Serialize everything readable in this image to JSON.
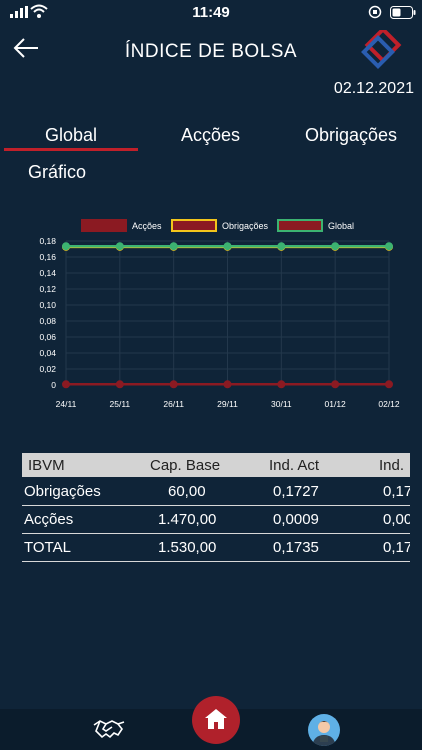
{
  "status": {
    "time": "11:49"
  },
  "header": {
    "title": "ÍNDICE DE BOLSA",
    "date": "02.12.2021"
  },
  "tabs": [
    {
      "label": "Global",
      "active": true
    },
    {
      "label": "Acções",
      "active": false
    },
    {
      "label": "Obrigações",
      "active": false
    }
  ],
  "section": {
    "title": "Gráfico"
  },
  "chart_data": {
    "type": "line",
    "x": [
      "24/11",
      "25/11",
      "26/11",
      "29/11",
      "30/11",
      "01/12",
      "02/12"
    ],
    "ylim": [
      0,
      0.18
    ],
    "yticks": [
      "0,18",
      "0,16",
      "0,14",
      "0,12",
      "0,10",
      "0,08",
      "0,06",
      "0,04",
      "0,02",
      "0"
    ],
    "legend_position": "top",
    "grid": true,
    "series": [
      {
        "name": "Acções",
        "color": "#8b1a22",
        "values": [
          0.0009,
          0.0009,
          0.0009,
          0.0009,
          0.0009,
          0.0009,
          0.0009
        ]
      },
      {
        "name": "Obrigações",
        "color": "#f2c51b",
        "values": [
          0.1727,
          0.1727,
          0.1727,
          0.1727,
          0.1727,
          0.1727,
          0.1727
        ]
      },
      {
        "name": "Global",
        "color": "#3cb371",
        "values": [
          0.1735,
          0.1735,
          0.1735,
          0.1735,
          0.1735,
          0.1735,
          0.1735
        ]
      }
    ]
  },
  "table": {
    "headers": [
      "IBVM",
      "Cap. Base",
      "Ind. Act",
      "Ind."
    ],
    "rows": [
      [
        "Obrigações",
        "60,00",
        "0,1727",
        "0,17"
      ],
      [
        "Acções",
        "1.470,00",
        "0,0009",
        "0,00"
      ],
      [
        "TOTAL",
        "1.530,00",
        "0,1735",
        "0,17"
      ]
    ]
  },
  "colors": {
    "background": "#0f2438",
    "accent": "#b0212b",
    "tab_underline": "#c0202a"
  },
  "icons": [
    "back-arrow-icon",
    "logo-icon",
    "handshake-icon",
    "home-icon",
    "avatar-icon"
  ]
}
